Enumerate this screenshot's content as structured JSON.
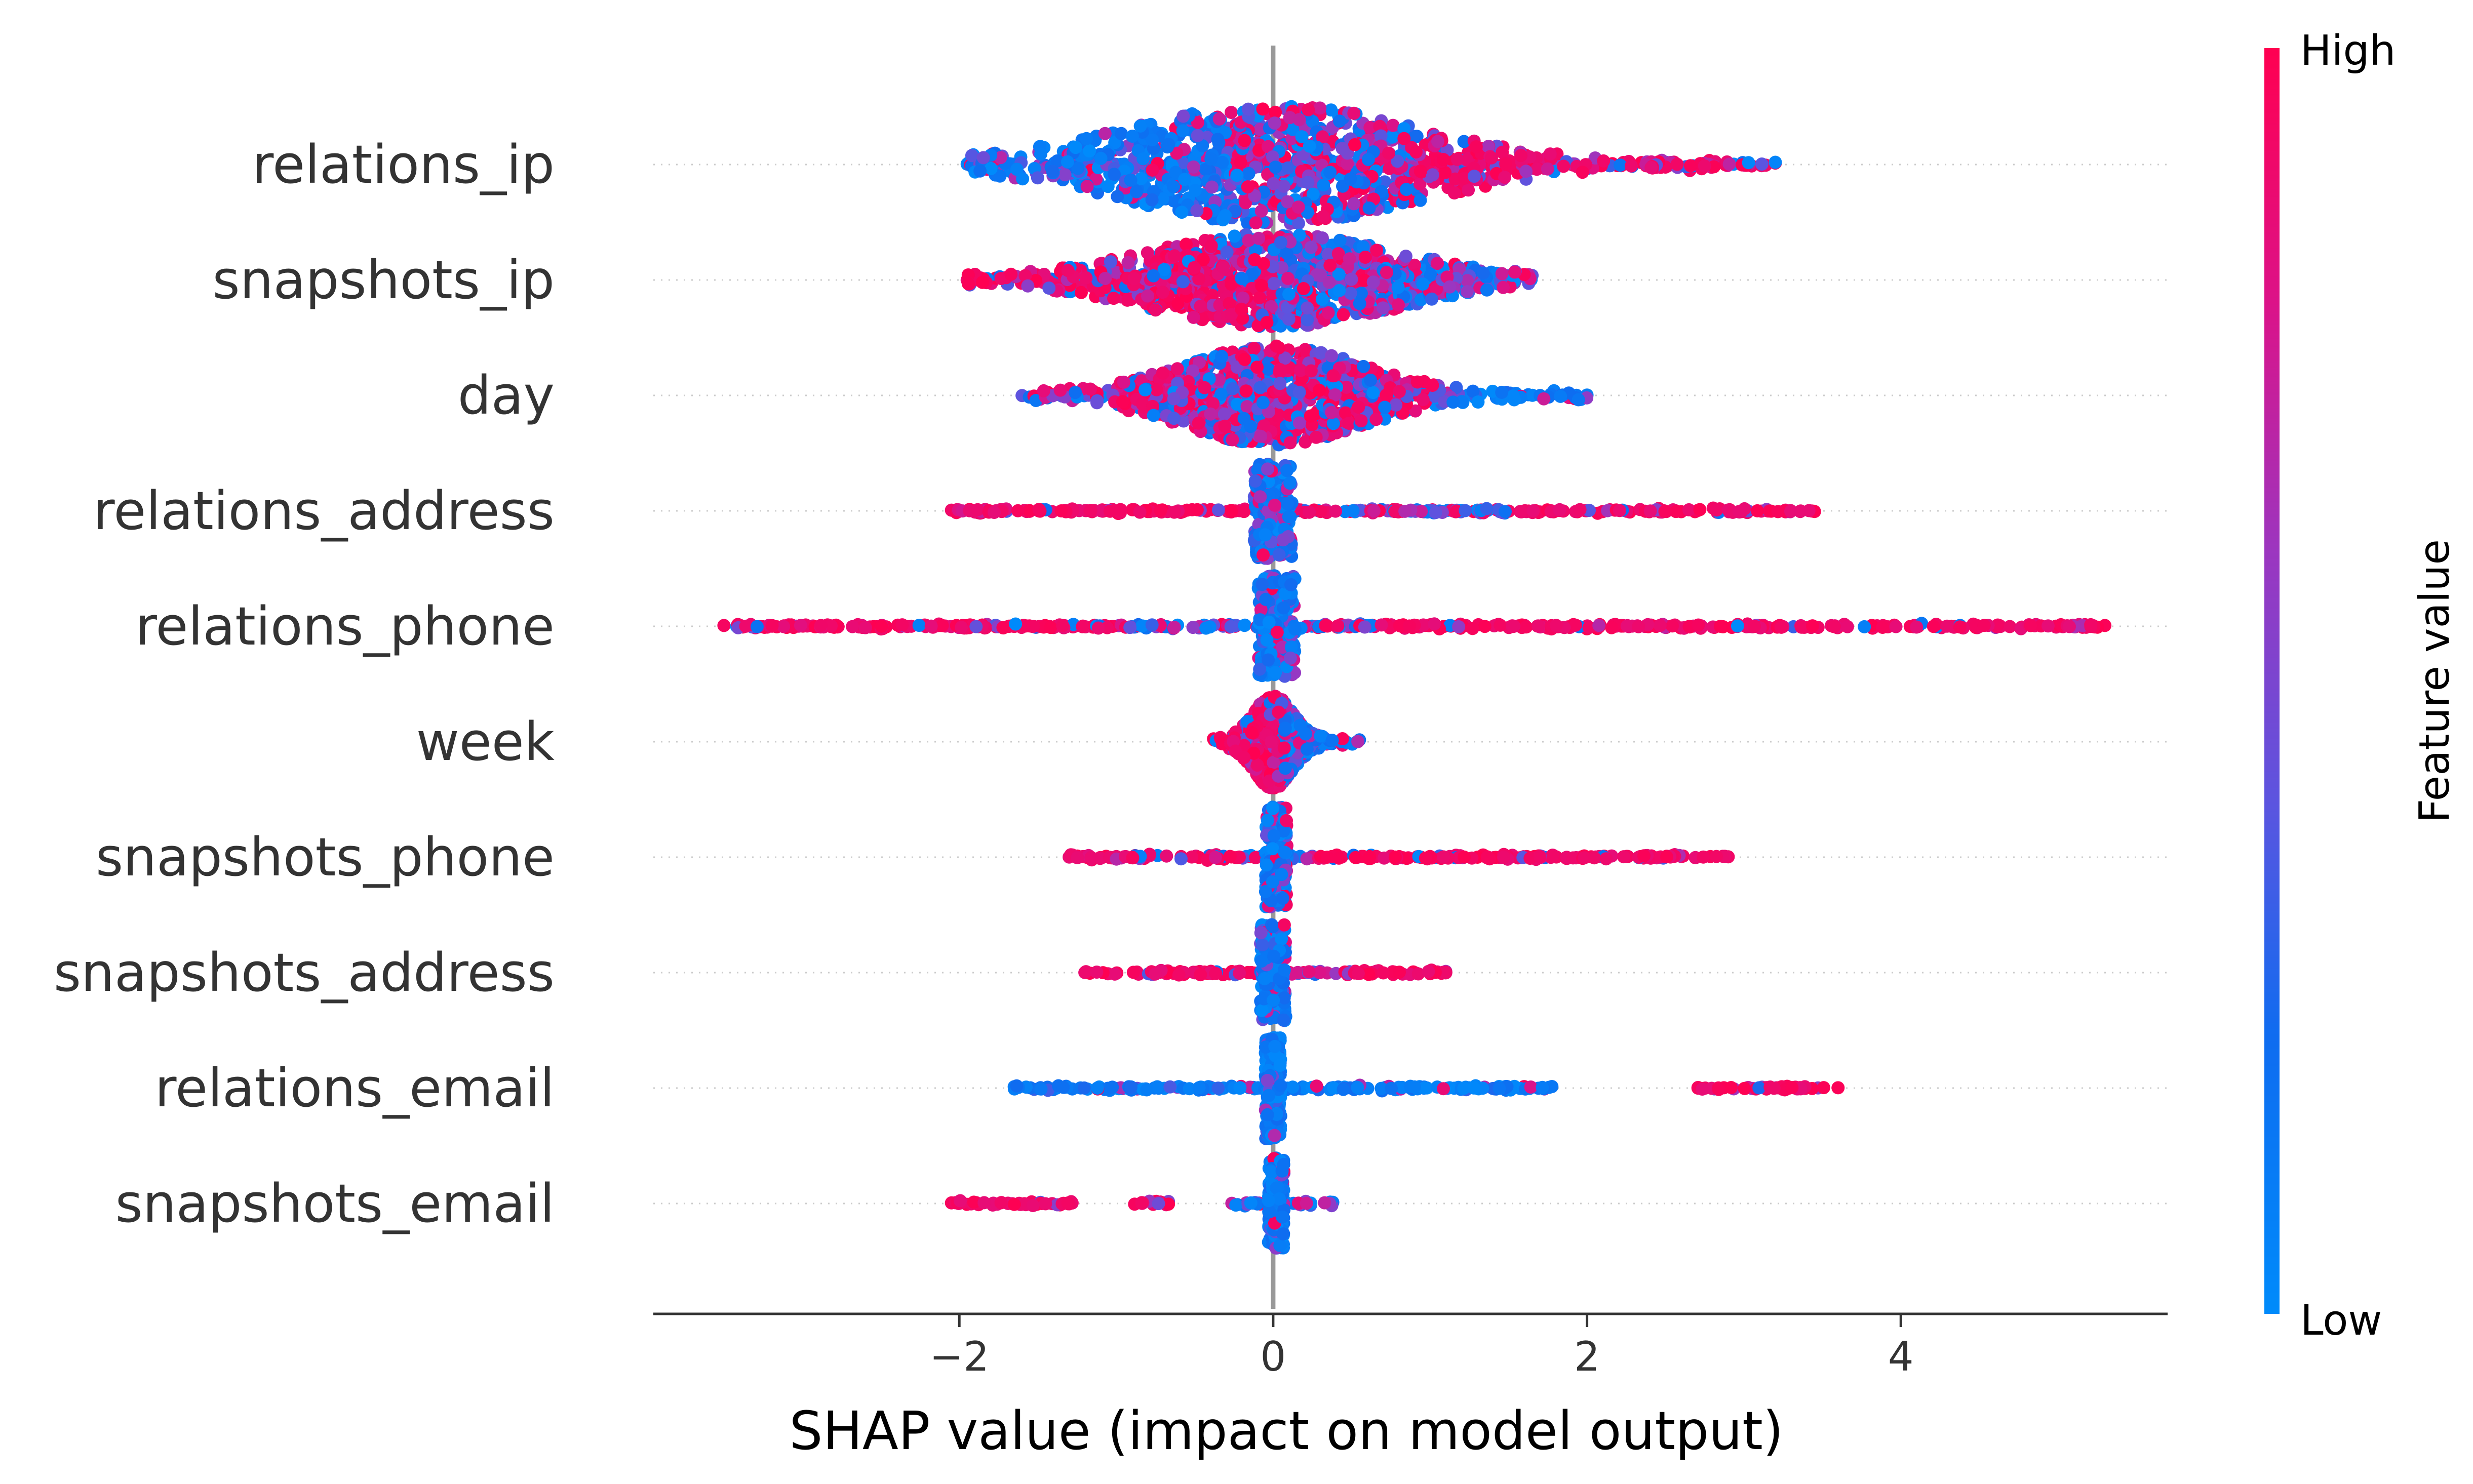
{
  "chart_data": {
    "type": "scatter",
    "subtype": "shap-beeswarm",
    "title": "",
    "xlabel": "SHAP value (impact on model output)",
    "ylabel": "",
    "xlim": [
      -3.95,
      5.7
    ],
    "xticks": [
      -2,
      0,
      2,
      4
    ],
    "xtick_labels": [
      "−2",
      "0",
      "2",
      "4"
    ],
    "grid": false,
    "zero_line": true,
    "features": [
      {
        "name": "relations_ip",
        "min": -1.95,
        "max": 3.2
      },
      {
        "name": "snapshots_ip",
        "min": -1.95,
        "max": 1.65
      },
      {
        "name": "day",
        "min": -1.6,
        "max": 2.0
      },
      {
        "name": "relations_address",
        "min": -2.05,
        "max": 3.45
      },
      {
        "name": "relations_phone",
        "min": -3.5,
        "max": 5.3
      },
      {
        "name": "week",
        "min": -0.38,
        "max": 0.55
      },
      {
        "name": "snapshots_phone",
        "min": -1.3,
        "max": 2.9
      },
      {
        "name": "snapshots_address",
        "min": -1.2,
        "max": 1.1
      },
      {
        "name": "relations_email",
        "min": -1.65,
        "max": 3.6
      },
      {
        "name": "snapshots_email",
        "min": -2.05,
        "max": 0.38
      }
    ],
    "colorbar": {
      "title": "Feature value",
      "high_label": "High",
      "low_label": "Low",
      "high_color": "#ff0051",
      "mid_color": "#7d3fd4",
      "low_color": "#008bfb"
    },
    "axis_color": "#333333",
    "zero_line_color": "#999999"
  }
}
